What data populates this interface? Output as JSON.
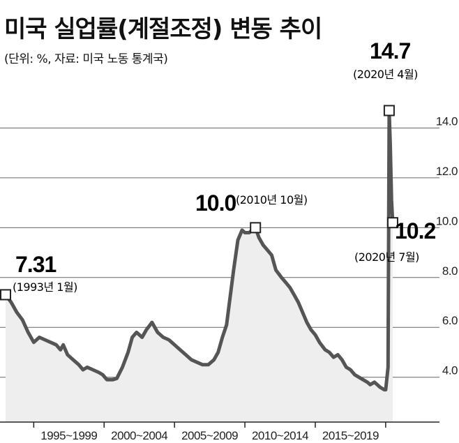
{
  "header": {
    "title": "미국 실업률(계절조정) 변동 추이",
    "subtitle": "(단위: %, 자료: 미국 노동 통계국)"
  },
  "chart_data": {
    "type": "area",
    "title": "미국 실업률(계절조정) 변동 추이",
    "subtitle": "(단위: %, 자료: 미국 노동 통계국)",
    "xlabel": "",
    "ylabel": "",
    "x_range": [
      1993.0,
      2020.75
    ],
    "ylim": [
      2.2,
      16.0
    ],
    "y_ticks": [
      4.0,
      6.0,
      8.0,
      10.0,
      12.0,
      14.0
    ],
    "y_tick_labels": [
      "4.0",
      "6.0",
      "8.0",
      "10.0",
      "12.0",
      "14.0"
    ],
    "x_tick_labels": [
      "1995~1999",
      "2000~2004",
      "2005~2009",
      "2010~2014",
      "2015~2019"
    ],
    "x_tick_spans": [
      [
        1995,
        1999
      ],
      [
        2000,
        2004
      ],
      [
        2005,
        2009
      ],
      [
        2010,
        2014
      ],
      [
        2015,
        2019
      ]
    ],
    "grid": "horizontal",
    "colors": {
      "line": "#555555",
      "fill": "#eeeeee",
      "grid": "#666666"
    },
    "points": [
      [
        1993.0,
        7.31
      ],
      [
        1993.4,
        7.0
      ],
      [
        1993.8,
        6.6
      ],
      [
        1994.2,
        6.3
      ],
      [
        1994.6,
        5.8
      ],
      [
        1995.0,
        5.4
      ],
      [
        1995.4,
        5.6
      ],
      [
        1995.8,
        5.5
      ],
      [
        1996.2,
        5.4
      ],
      [
        1996.6,
        5.3
      ],
      [
        1996.9,
        5.1
      ],
      [
        1997.1,
        5.3
      ],
      [
        1997.4,
        4.9
      ],
      [
        1997.8,
        4.7
      ],
      [
        1998.2,
        4.5
      ],
      [
        1998.5,
        4.3
      ],
      [
        1998.8,
        4.4
      ],
      [
        1999.2,
        4.3
      ],
      [
        1999.6,
        4.2
      ],
      [
        1999.9,
        4.1
      ],
      [
        2000.2,
        3.9
      ],
      [
        2000.6,
        3.9
      ],
      [
        2000.9,
        3.95
      ],
      [
        2001.3,
        4.4
      ],
      [
        2001.7,
        5.0
      ],
      [
        2002.0,
        5.6
      ],
      [
        2002.3,
        5.8
      ],
      [
        2002.7,
        5.6
      ],
      [
        2003.0,
        5.9
      ],
      [
        2003.4,
        6.2
      ],
      [
        2003.8,
        5.8
      ],
      [
        2004.2,
        5.6
      ],
      [
        2004.6,
        5.5
      ],
      [
        2005.0,
        5.3
      ],
      [
        2005.4,
        5.1
      ],
      [
        2005.8,
        4.9
      ],
      [
        2006.2,
        4.7
      ],
      [
        2006.6,
        4.6
      ],
      [
        2007.0,
        4.5
      ],
      [
        2007.4,
        4.5
      ],
      [
        2007.8,
        4.7
      ],
      [
        2008.1,
        5.0
      ],
      [
        2008.4,
        5.6
      ],
      [
        2008.7,
        6.1
      ],
      [
        2008.9,
        7.0
      ],
      [
        2009.2,
        8.3
      ],
      [
        2009.5,
        9.5
      ],
      [
        2009.8,
        9.9
      ],
      [
        2010.0,
        9.8
      ],
      [
        2010.3,
        9.8
      ],
      [
        2010.75,
        10.0
      ],
      [
        2011.0,
        9.6
      ],
      [
        2011.3,
        9.3
      ],
      [
        2011.6,
        9.1
      ],
      [
        2011.9,
        8.9
      ],
      [
        2012.2,
        8.3
      ],
      [
        2012.6,
        8.0
      ],
      [
        2012.9,
        7.8
      ],
      [
        2013.2,
        7.6
      ],
      [
        2013.5,
        7.3
      ],
      [
        2013.8,
        7.0
      ],
      [
        2014.1,
        6.6
      ],
      [
        2014.4,
        6.2
      ],
      [
        2014.7,
        5.9
      ],
      [
        2015.0,
        5.7
      ],
      [
        2015.3,
        5.4
      ],
      [
        2015.7,
        5.1
      ],
      [
        2016.0,
        5.0
      ],
      [
        2016.3,
        4.8
      ],
      [
        2016.6,
        4.9
      ],
      [
        2016.9,
        4.7
      ],
      [
        2017.2,
        4.4
      ],
      [
        2017.5,
        4.3
      ],
      [
        2017.8,
        4.1
      ],
      [
        2018.1,
        4.0
      ],
      [
        2018.4,
        3.9
      ],
      [
        2018.7,
        3.8
      ],
      [
        2018.9,
        3.7
      ],
      [
        2019.2,
        3.8
      ],
      [
        2019.4,
        3.7
      ],
      [
        2019.6,
        3.6
      ],
      [
        2019.9,
        3.5
      ],
      [
        2020.0,
        3.5
      ],
      [
        2020.17,
        4.4
      ],
      [
        2020.25,
        14.7
      ],
      [
        2020.33,
        13.3
      ],
      [
        2020.42,
        11.1
      ],
      [
        2020.5,
        10.2
      ]
    ],
    "annotations": [
      {
        "x": 1993.0,
        "y": 7.31,
        "value": "7.31",
        "date": "(1993년 1월)"
      },
      {
        "x": 2010.75,
        "y": 10.0,
        "value": "10.0",
        "date": "(2010년 10월)"
      },
      {
        "x": 2020.25,
        "y": 14.7,
        "value": "14.7",
        "date": "(2020년 4월)"
      },
      {
        "x": 2020.5,
        "y": 10.2,
        "value": "10.2",
        "date": "(2020년 7월)"
      }
    ]
  }
}
